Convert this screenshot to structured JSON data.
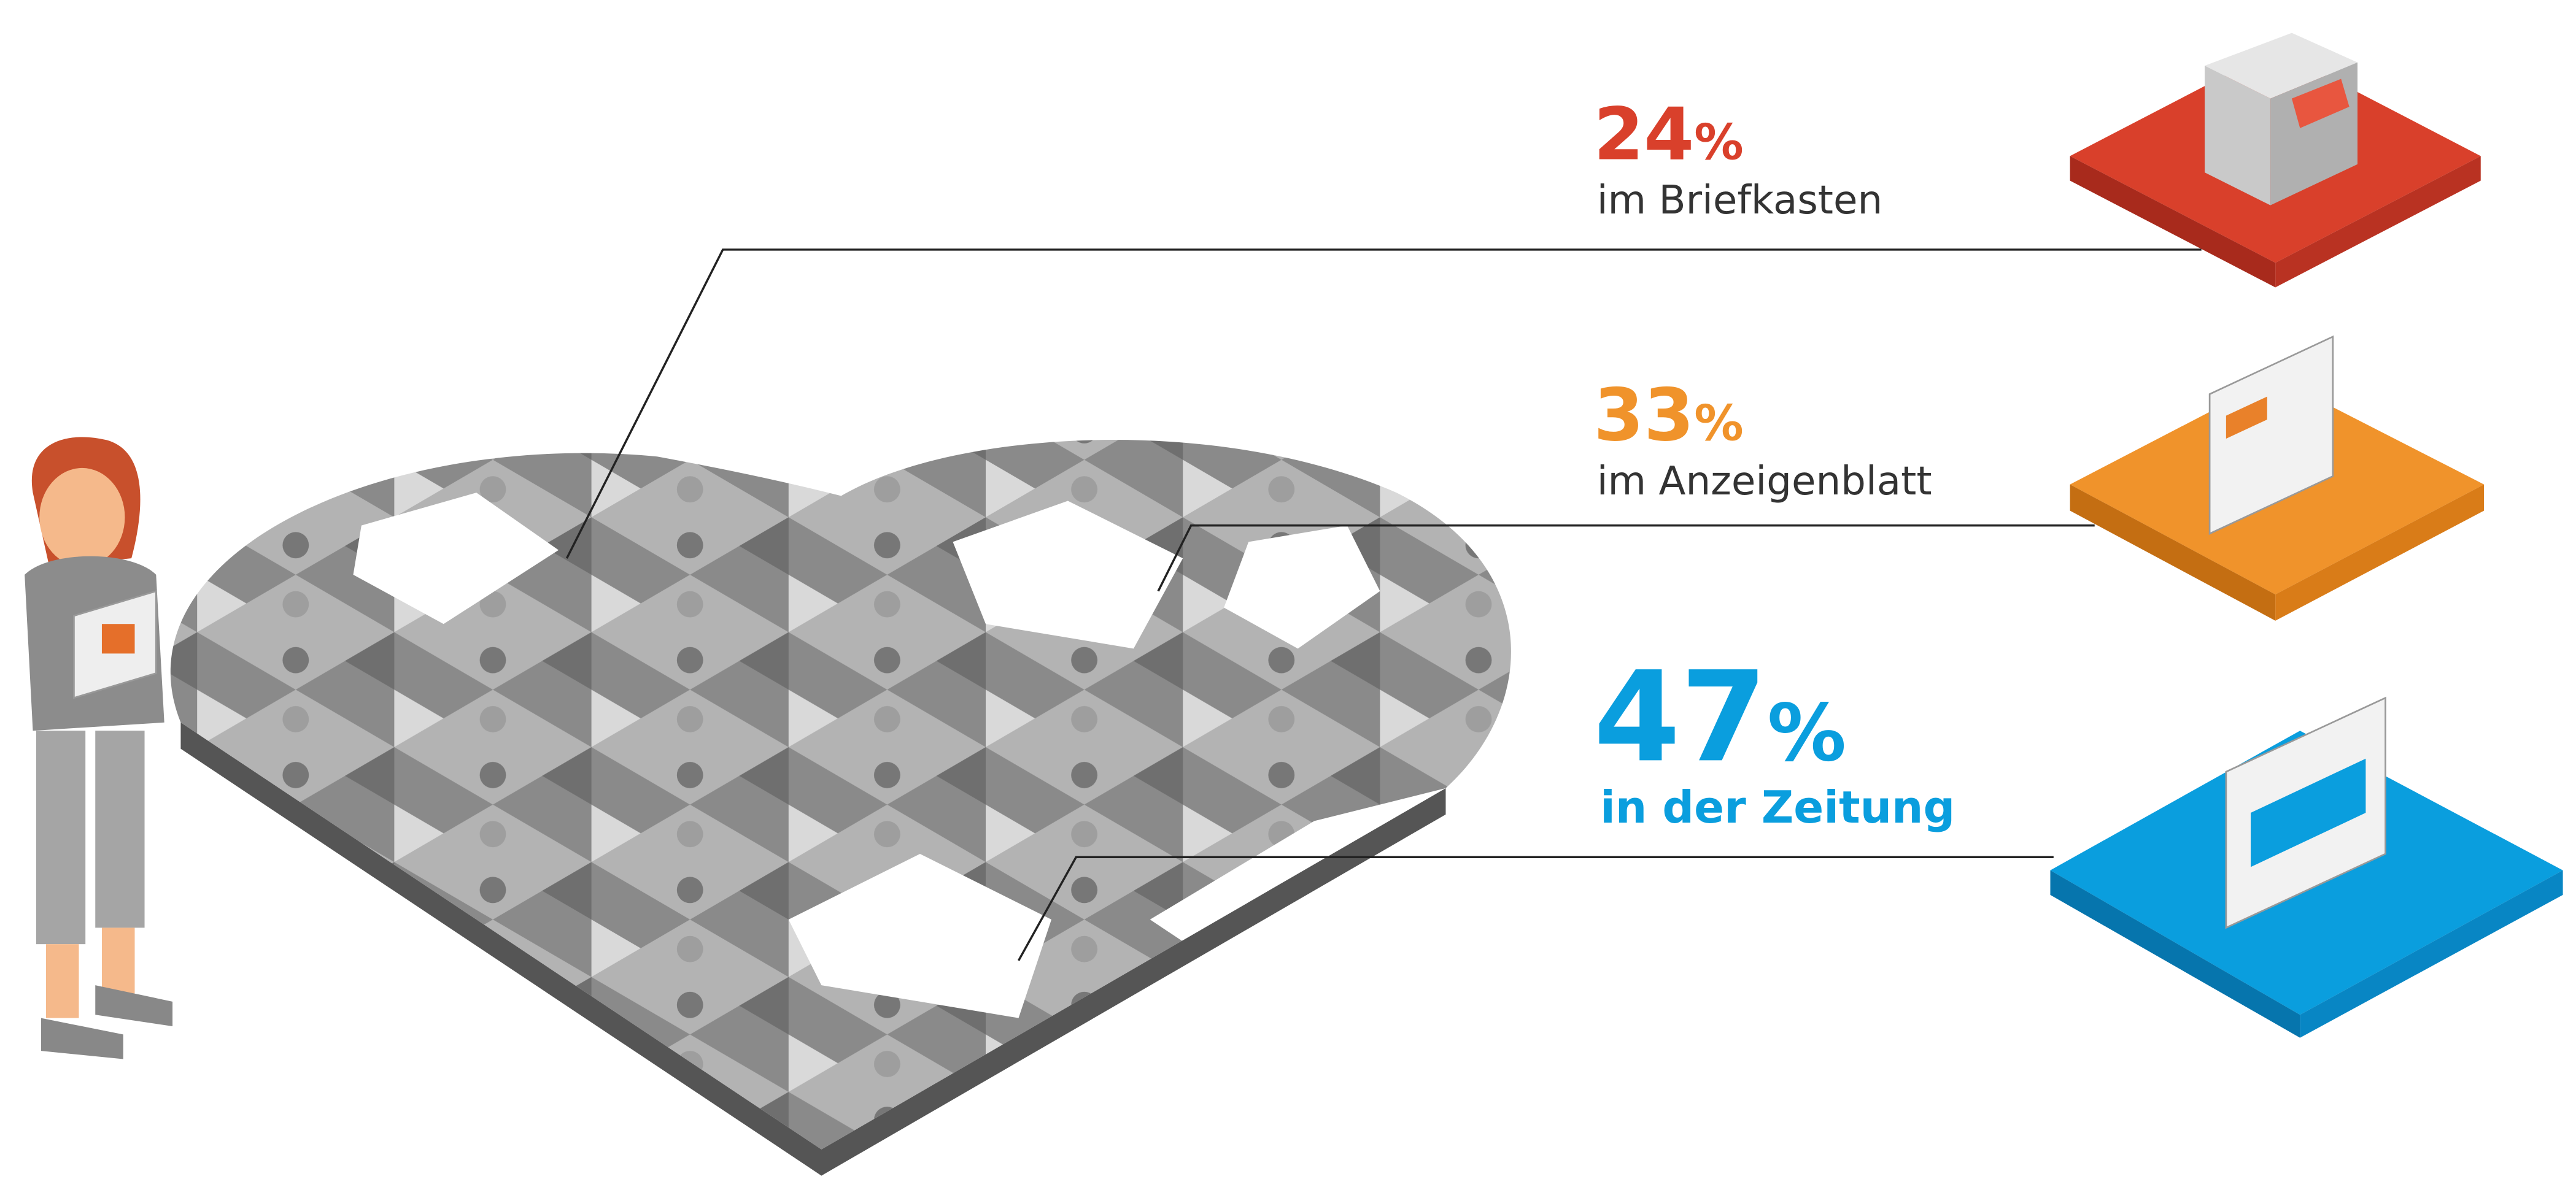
{
  "items": [
    {
      "value": 24,
      "unit": "%",
      "label": "im Briefkasten"
    },
    {
      "value": 33,
      "unit": "%",
      "label": "im Anzeigenblatt"
    },
    {
      "value": 47,
      "unit": "%",
      "label": "in der Zeitung"
    }
  ]
}
